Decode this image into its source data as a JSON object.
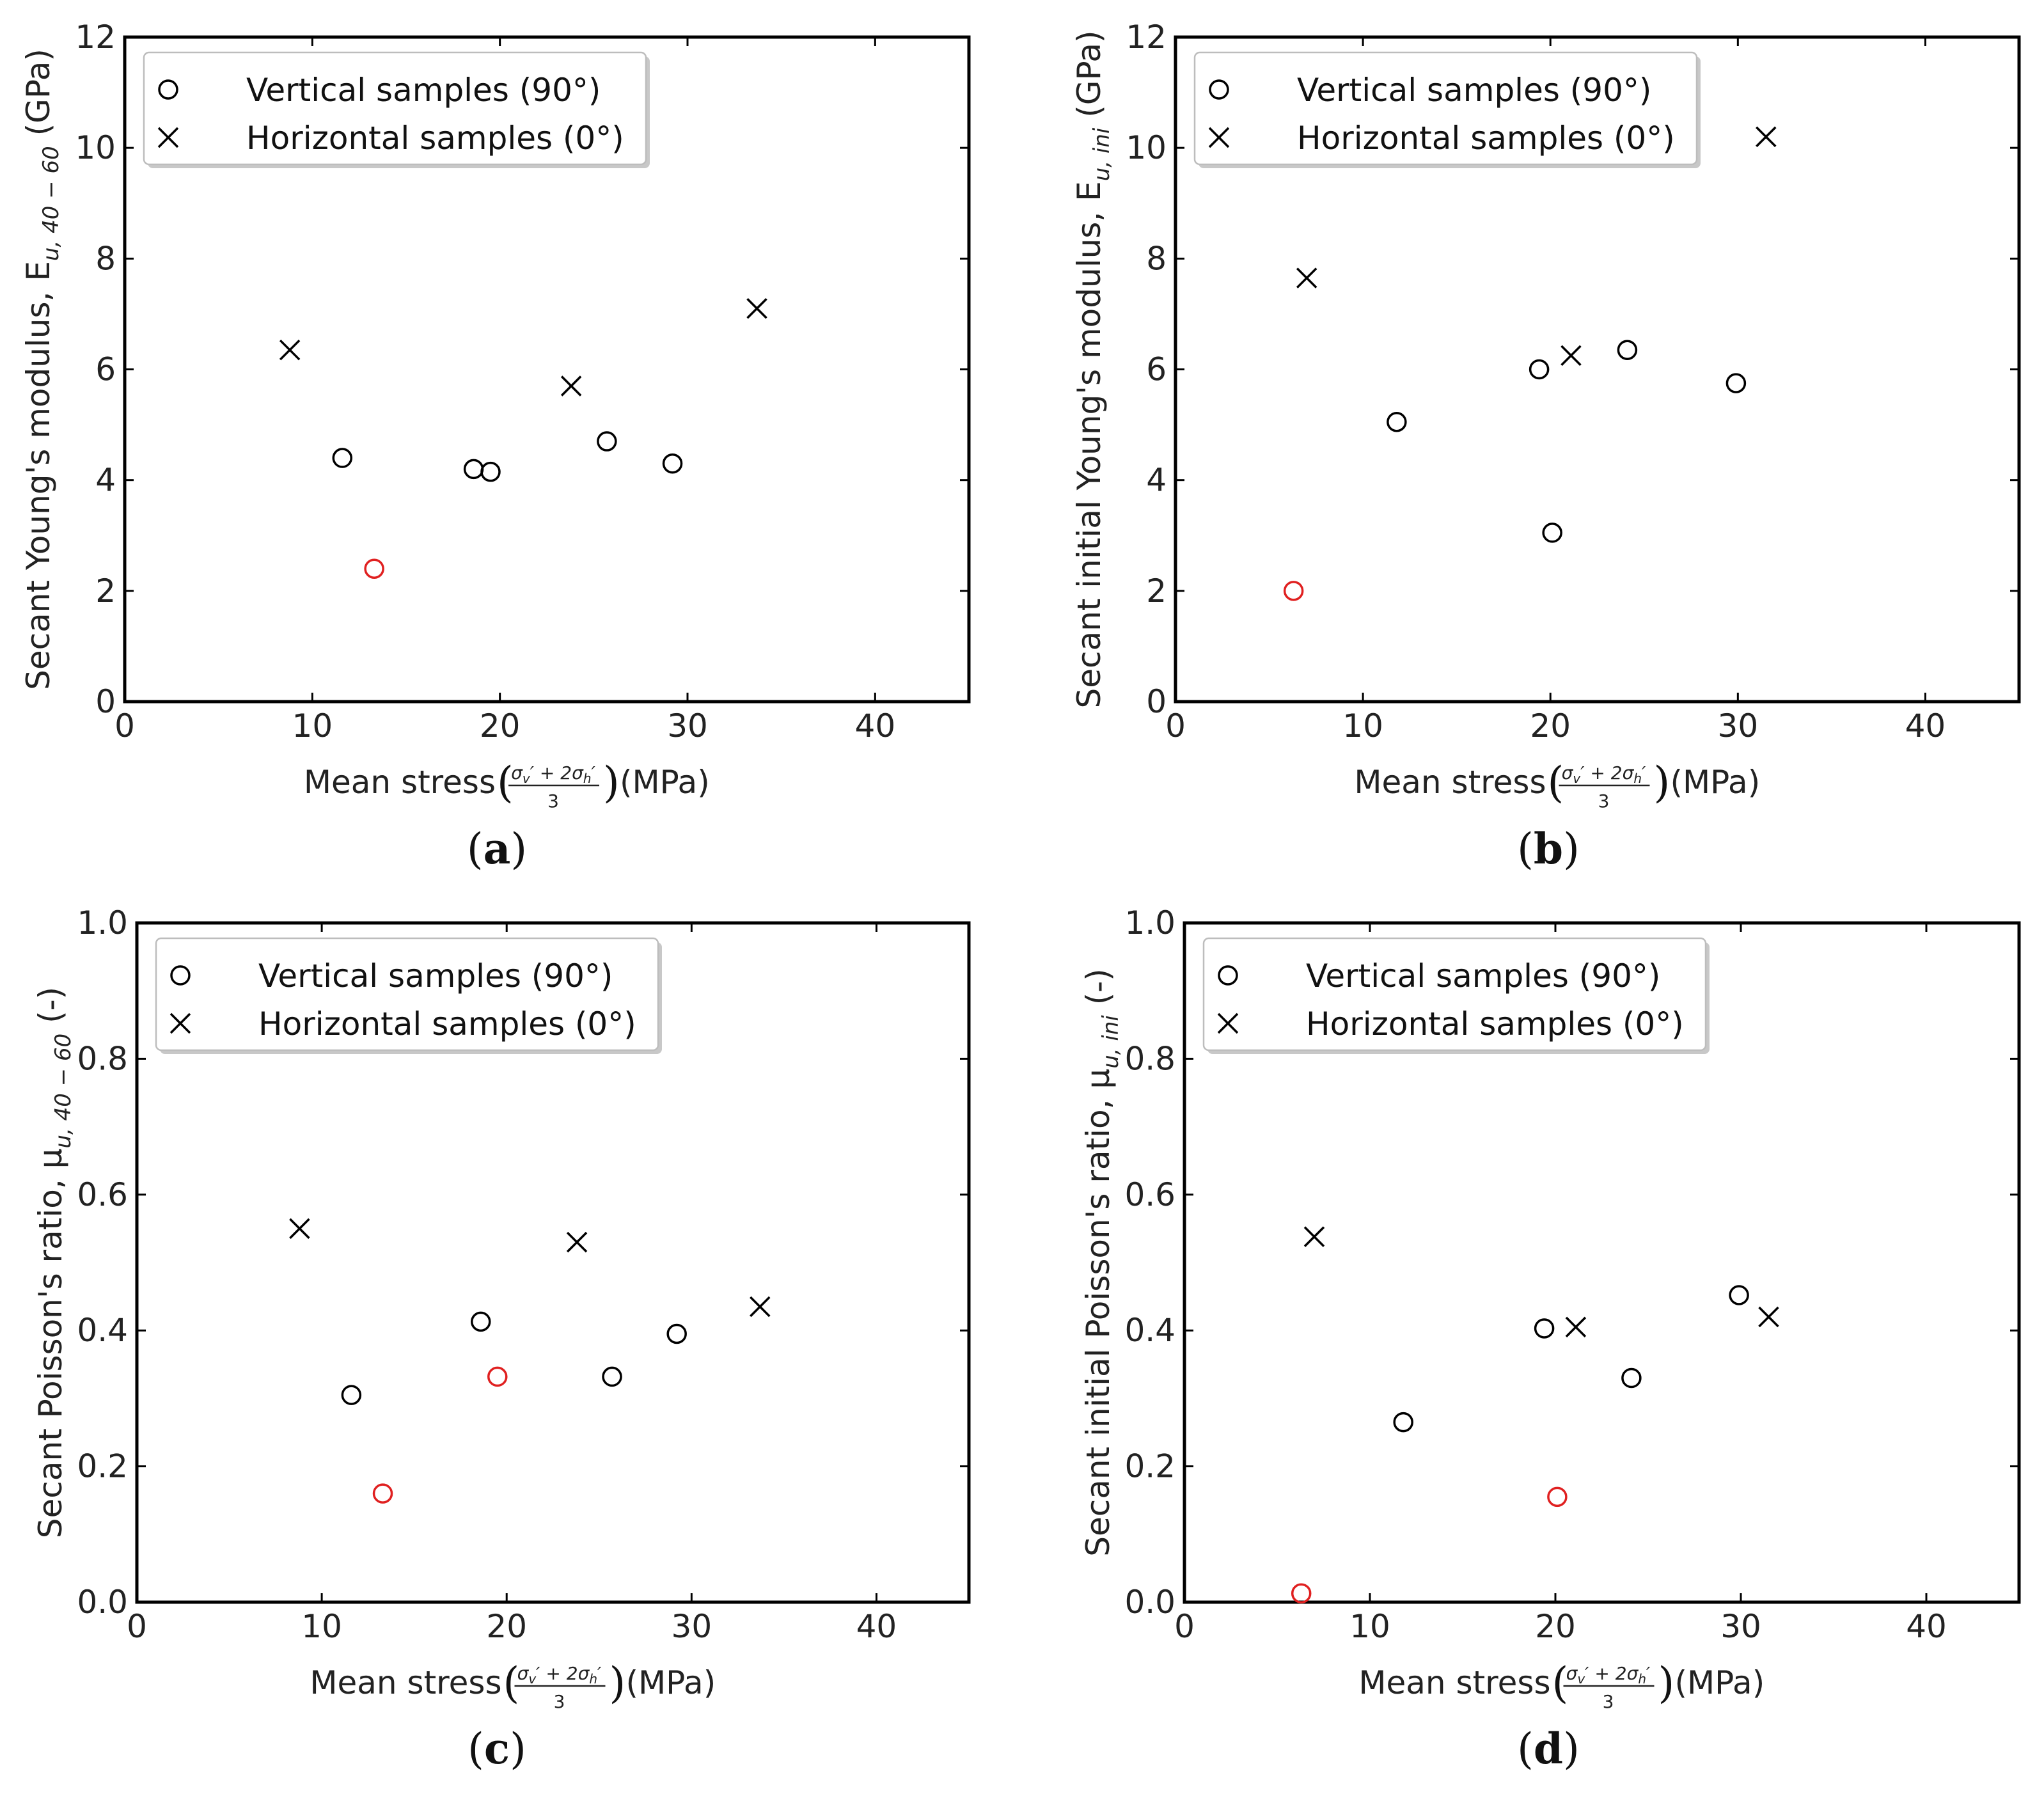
{
  "chart_data": [
    {
      "type": "scatter",
      "panel_label": "a",
      "ylabel_main": "Secant Young's modulus, E",
      "ylabel_sub": "u, 40 − 60",
      "ylabel_unit": " (GPa)",
      "xlabel_prefix": "Mean stress ",
      "xlabel_unit": " (MPa)",
      "xlim": [
        0,
        45
      ],
      "ylim": [
        0,
        12
      ],
      "xticks": [
        0,
        10,
        20,
        30,
        40
      ],
      "yticks": [
        0,
        2,
        4,
        6,
        8,
        10,
        12
      ],
      "ytick_labels": [
        "0",
        "2",
        "4",
        "6",
        "8",
        "10",
        "12"
      ],
      "legend": [
        "Vertical samples (90°)",
        "Horizontal samples (0°)"
      ],
      "legend_position": "top-left",
      "series": [
        {
          "name": "Vertical samples (90°)",
          "marker": "circle",
          "color": "#000000",
          "points": [
            [
              11.6,
              4.4
            ],
            [
              18.6,
              4.2
            ],
            [
              19.5,
              4.15
            ],
            [
              25.7,
              4.7
            ],
            [
              29.2,
              4.3
            ]
          ]
        },
        {
          "name": "Vertical samples (90°) (highlighted)",
          "marker": "circle",
          "color": "#e02020",
          "points": [
            [
              13.3,
              2.4
            ]
          ]
        },
        {
          "name": "Horizontal samples (0°)",
          "marker": "x",
          "color": "#000000",
          "points": [
            [
              8.8,
              6.35
            ],
            [
              23.8,
              5.7
            ],
            [
              33.7,
              7.1
            ]
          ]
        }
      ]
    },
    {
      "type": "scatter",
      "panel_label": "b",
      "ylabel_main": "Secant initial Young's modulus, E",
      "ylabel_sub": "u, ini",
      "ylabel_unit": " (GPa)",
      "xlabel_prefix": "Mean stress ",
      "xlabel_unit": " (MPa)",
      "xlim": [
        0,
        45
      ],
      "ylim": [
        0,
        12
      ],
      "xticks": [
        0,
        10,
        20,
        30,
        40
      ],
      "yticks": [
        0,
        2,
        4,
        6,
        8,
        10,
        12
      ],
      "ytick_labels": [
        "0",
        "2",
        "4",
        "6",
        "8",
        "10",
        "12"
      ],
      "legend": [
        "Vertical samples (90°)",
        "Horizontal samples (0°)"
      ],
      "legend_position": "top-left",
      "series": [
        {
          "name": "Vertical samples (90°)",
          "marker": "circle",
          "color": "#000000",
          "points": [
            [
              11.8,
              5.05
            ],
            [
              19.4,
              6.0
            ],
            [
              20.1,
              3.05
            ],
            [
              24.1,
              6.35
            ],
            [
              29.9,
              5.75
            ]
          ]
        },
        {
          "name": "Vertical samples (90°) (highlighted)",
          "marker": "circle",
          "color": "#e02020",
          "points": [
            [
              6.3,
              2.0
            ]
          ]
        },
        {
          "name": "Horizontal samples (0°)",
          "marker": "x",
          "color": "#000000",
          "points": [
            [
              7.0,
              7.65
            ],
            [
              21.1,
              6.25
            ],
            [
              31.5,
              10.2
            ]
          ]
        }
      ]
    },
    {
      "type": "scatter",
      "panel_label": "c",
      "ylabel_main": "Secant Poisson's ratio, μ",
      "ylabel_sub": "u, 40 − 60",
      "ylabel_unit": " (-)",
      "xlabel_prefix": "Mean stress ",
      "xlabel_unit": " (MPa)",
      "xlim": [
        0,
        45
      ],
      "ylim": [
        0,
        1.0
      ],
      "xticks": [
        0,
        10,
        20,
        30,
        40
      ],
      "yticks": [
        0,
        0.2,
        0.4,
        0.6,
        0.8,
        1.0
      ],
      "ytick_labels": [
        "0.0",
        "0.2",
        "0.4",
        "0.6",
        "0.8",
        "1.0"
      ],
      "legend": [
        "Vertical samples (90°)",
        "Horizontal samples (0°)"
      ],
      "legend_position": "top-left",
      "series": [
        {
          "name": "Vertical samples (90°)",
          "marker": "circle",
          "color": "#000000",
          "points": [
            [
              11.6,
              0.305
            ],
            [
              18.6,
              0.413
            ],
            [
              25.7,
              0.332
            ],
            [
              29.2,
              0.395
            ]
          ]
        },
        {
          "name": "Vertical samples (90°) (highlighted)",
          "marker": "circle",
          "color": "#e02020",
          "points": [
            [
              13.3,
              0.16
            ],
            [
              19.5,
              0.332
            ]
          ]
        },
        {
          "name": "Horizontal samples (0°)",
          "marker": "x",
          "color": "#000000",
          "points": [
            [
              8.8,
              0.55
            ],
            [
              23.8,
              0.53
            ],
            [
              33.7,
              0.435
            ]
          ]
        }
      ]
    },
    {
      "type": "scatter",
      "panel_label": "d",
      "ylabel_main": "Secant initial Poisson's ratio, μ",
      "ylabel_sub": "u, ini",
      "ylabel_unit": " (-)",
      "xlabel_prefix": "Mean stress ",
      "xlabel_unit": " (MPa)",
      "xlim": [
        0,
        45
      ],
      "ylim": [
        0,
        1.0
      ],
      "xticks": [
        0,
        10,
        20,
        30,
        40
      ],
      "yticks": [
        0,
        0.2,
        0.4,
        0.6,
        0.8,
        1.0
      ],
      "ytick_labels": [
        "0.0",
        "0.2",
        "0.4",
        "0.6",
        "0.8",
        "1.0"
      ],
      "legend": [
        "Vertical samples (90°)",
        "Horizontal samples (0°)"
      ],
      "legend_position": "top-left",
      "series": [
        {
          "name": "Vertical samples (90°)",
          "marker": "circle",
          "color": "#000000",
          "points": [
            [
              11.8,
              0.265
            ],
            [
              19.4,
              0.403
            ],
            [
              24.1,
              0.33
            ],
            [
              29.9,
              0.452
            ]
          ]
        },
        {
          "name": "Vertical samples (90°) (highlighted)",
          "marker": "circle",
          "color": "#e02020",
          "points": [
            [
              6.3,
              0.013
            ],
            [
              20.1,
              0.155
            ]
          ]
        },
        {
          "name": "Horizontal samples (0°)",
          "marker": "x",
          "color": "#000000",
          "points": [
            [
              7.0,
              0.538
            ],
            [
              21.1,
              0.405
            ],
            [
              31.5,
              0.42
            ]
          ]
        }
      ]
    }
  ]
}
